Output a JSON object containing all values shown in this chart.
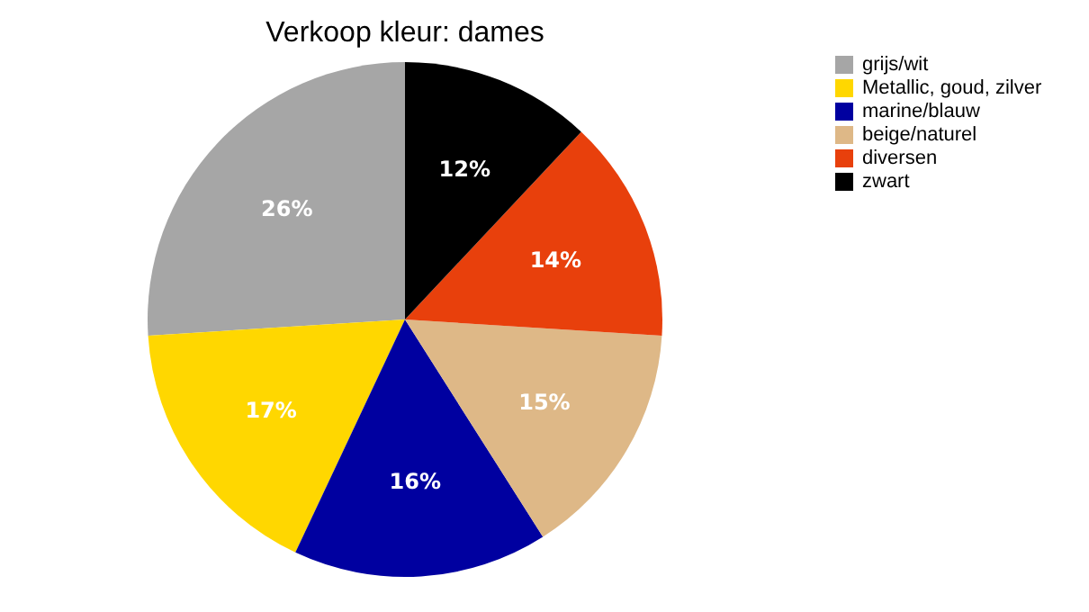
{
  "chart_data": {
    "type": "pie",
    "title": "Verkoop kleur: dames",
    "categories": [
      "grijs/wit",
      "Metallic, goud, zilver",
      "marine/blauw",
      "beige/naturel",
      "diversen",
      "zwart"
    ],
    "values": [
      26,
      17,
      16,
      15,
      14,
      12
    ],
    "colors": [
      "#a6a6a6",
      "#ffd700",
      "#0000a0",
      "#deb887",
      "#e8400c",
      "#000000"
    ],
    "value_labels": [
      "26%",
      "17%",
      "16%",
      "15%",
      "14%",
      "12%"
    ],
    "legend": "right"
  }
}
